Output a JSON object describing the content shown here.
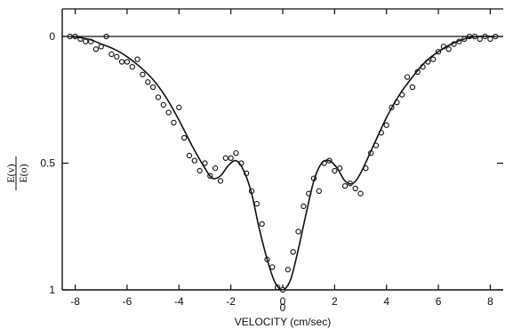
{
  "chart_data": {
    "type": "scatter",
    "title": "",
    "xlabel": "VELOCITY (cm/sec)",
    "ylabel_numerator": "E(v)",
    "ylabel_denominator": "E(o)",
    "xlim": [
      -8.5,
      8.5
    ],
    "ylim": [
      0,
      1
    ],
    "y_inverted": true,
    "grid": false,
    "x_ticks": [
      -8,
      -6,
      -4,
      -2,
      0,
      2,
      4,
      6,
      8
    ],
    "x_tick_labels": [
      "-8",
      "-6",
      "-4",
      "-2",
      "0",
      "2",
      "4",
      "6",
      "8"
    ],
    "y_ticks": [
      0,
      0.5,
      1
    ],
    "y_tick_labels": [
      "0",
      "0.5",
      "1"
    ],
    "annotations": [
      {
        "text": "0",
        "x": 0,
        "y": 1.07
      }
    ],
    "series": [
      {
        "kind": "points",
        "x": [
          -8.2,
          -8.0,
          -7.8,
          -7.6,
          -7.4,
          -7.2,
          -7.0,
          -6.8,
          -6.6,
          -6.4,
          -6.2,
          -6.0,
          -5.8,
          -5.6,
          -5.4,
          -5.2,
          -5.0,
          -4.8,
          -4.6,
          -4.4,
          -4.2,
          -4.0,
          -3.8,
          -3.6,
          -3.4,
          -3.2,
          -3.0,
          -2.8,
          -2.6,
          -2.4,
          -2.2,
          -2.0,
          -1.8,
          -1.6,
          -1.4,
          -1.2,
          -1.0,
          -0.8,
          -0.6,
          -0.4,
          -0.2,
          0.0,
          0.2,
          0.4,
          0.6,
          0.8,
          1.0,
          1.2,
          1.4,
          1.6,
          1.8,
          2.0,
          2.2,
          2.4,
          2.6,
          2.8,
          3.0,
          3.2,
          3.4,
          3.6,
          3.8,
          4.0,
          4.2,
          4.4,
          4.6,
          4.8,
          5.0,
          5.2,
          5.4,
          5.6,
          5.8,
          6.0,
          6.2,
          6.4,
          6.6,
          6.8,
          7.0,
          7.2,
          7.4,
          7.6,
          7.8,
          8.0,
          8.2
        ],
        "y": [
          0.0,
          0.0,
          0.01,
          0.02,
          0.02,
          0.05,
          0.04,
          0.0,
          0.07,
          0.08,
          0.1,
          0.1,
          0.12,
          0.09,
          0.15,
          0.18,
          0.2,
          0.24,
          0.27,
          0.3,
          0.34,
          0.28,
          0.4,
          0.47,
          0.49,
          0.53,
          0.5,
          0.55,
          0.52,
          0.57,
          0.48,
          0.48,
          0.46,
          0.5,
          0.54,
          0.61,
          0.66,
          0.74,
          0.88,
          0.91,
          0.99,
          1.0,
          0.92,
          0.85,
          0.77,
          0.67,
          0.62,
          0.56,
          0.61,
          0.5,
          0.49,
          0.53,
          0.52,
          0.59,
          0.58,
          0.6,
          0.62,
          0.52,
          0.46,
          0.43,
          0.38,
          0.35,
          0.28,
          0.26,
          0.23,
          0.16,
          0.2,
          0.14,
          0.12,
          0.1,
          0.09,
          0.06,
          0.04,
          0.05,
          0.03,
          0.02,
          0.01,
          0.0,
          0.0,
          0.01,
          0.0,
          0.01,
          0.0
        ]
      },
      {
        "kind": "line",
        "x": [
          -8.2,
          -7.5,
          -7.0,
          -6.5,
          -6.0,
          -5.5,
          -5.0,
          -4.5,
          -4.0,
          -3.5,
          -3.0,
          -2.7,
          -2.4,
          -2.1,
          -1.8,
          -1.5,
          -1.2,
          -0.9,
          -0.6,
          -0.3,
          0.0,
          0.3,
          0.6,
          0.9,
          1.2,
          1.5,
          1.8,
          2.1,
          2.4,
          2.7,
          3.0,
          3.5,
          4.0,
          4.5,
          5.0,
          5.5,
          6.0,
          6.5,
          7.0,
          7.5,
          8.2
        ],
        "y": [
          0.0,
          0.01,
          0.03,
          0.05,
          0.08,
          0.12,
          0.17,
          0.24,
          0.33,
          0.43,
          0.52,
          0.56,
          0.55,
          0.51,
          0.49,
          0.53,
          0.62,
          0.76,
          0.88,
          0.97,
          1.0,
          0.96,
          0.84,
          0.7,
          0.57,
          0.5,
          0.49,
          0.52,
          0.57,
          0.58,
          0.54,
          0.43,
          0.32,
          0.23,
          0.16,
          0.1,
          0.06,
          0.03,
          0.01,
          0.0,
          0.0
        ]
      },
      {
        "kind": "reference-line",
        "x": [
          -8.5,
          8.5
        ],
        "y": [
          0,
          0
        ]
      }
    ]
  }
}
